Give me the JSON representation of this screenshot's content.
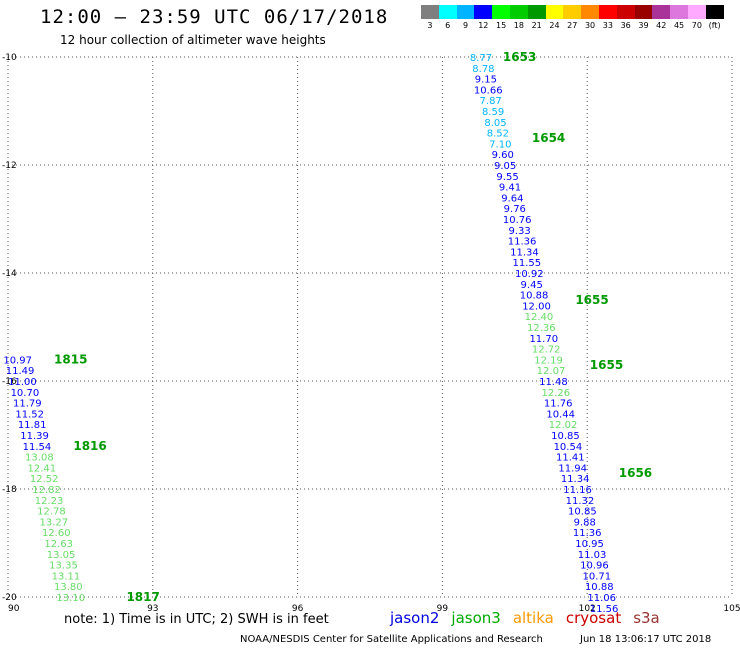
{
  "header": {
    "title": "12:00 – 23:59 UTC 06/17/2018",
    "subtitle": "12 hour collection of altimeter wave heights"
  },
  "legend": {
    "unit": "(ft)",
    "swatches": [
      {
        "label": "3",
        "color": "#7f7f7f"
      },
      {
        "label": "6",
        "color": "#00ffff"
      },
      {
        "label": "9",
        "color": "#00b4ff"
      },
      {
        "label": "12",
        "color": "#0000ff"
      },
      {
        "label": "15",
        "color": "#00ff00"
      },
      {
        "label": "18",
        "color": "#00cc00"
      },
      {
        "label": "21",
        "color": "#009900"
      },
      {
        "label": "24",
        "color": "#ffff00"
      },
      {
        "label": "27",
        "color": "#ffcc00"
      },
      {
        "label": "30",
        "color": "#ff8800"
      },
      {
        "label": "33",
        "color": "#ff0000"
      },
      {
        "label": "36",
        "color": "#cc0000"
      },
      {
        "label": "39",
        "color": "#990000"
      },
      {
        "label": "42",
        "color": "#aa3399"
      },
      {
        "label": "45",
        "color": "#dd77dd"
      },
      {
        "label": "70",
        "color": "#ffaaff"
      },
      {
        "label": "",
        "color": "#000000"
      }
    ]
  },
  "chart_data": {
    "type": "scatter",
    "xlim": [
      90,
      105
    ],
    "ylim": [
      -20,
      -10
    ],
    "x_ticks": [
      90,
      93,
      96,
      99,
      102,
      105
    ],
    "y_ticks": [
      -10,
      -12,
      -14,
      -16,
      -18,
      -20
    ],
    "grid": true,
    "tracks": [
      {
        "points": [
          {
            "lon": 99.8,
            "lat": -10.0,
            "v": "8.77",
            "c": "#00b4ff"
          },
          {
            "lon": 99.85,
            "lat": -10.2,
            "v": "8.78",
            "c": "#00b4ff"
          },
          {
            "lon": 99.9,
            "lat": -10.4,
            "v": "9.15",
            "c": "#0000ff"
          },
          {
            "lon": 99.95,
            "lat": -10.6,
            "v": "10.66",
            "c": "#0000ff"
          },
          {
            "lon": 100.0,
            "lat": -10.8,
            "v": "7.87",
            "c": "#00b4ff"
          },
          {
            "lon": 100.05,
            "lat": -11.0,
            "v": "8.59",
            "c": "#00b4ff"
          },
          {
            "lon": 100.1,
            "lat": -11.2,
            "v": "8.05",
            "c": "#00b4ff"
          },
          {
            "lon": 100.15,
            "lat": -11.4,
            "v": "8.52",
            "c": "#00b4ff"
          },
          {
            "lon": 100.2,
            "lat": -11.6,
            "v": "7.10",
            "c": "#00b4ff"
          },
          {
            "lon": 100.25,
            "lat": -11.8,
            "v": "9.60",
            "c": "#0000ff"
          },
          {
            "lon": 100.3,
            "lat": -12.0,
            "v": "9.05",
            "c": "#0000ff"
          },
          {
            "lon": 100.35,
            "lat": -12.2,
            "v": "9.55",
            "c": "#0000ff"
          },
          {
            "lon": 100.4,
            "lat": -12.4,
            "v": "9.41",
            "c": "#0000ff"
          },
          {
            "lon": 100.45,
            "lat": -12.6,
            "v": "9.64",
            "c": "#0000ff"
          },
          {
            "lon": 100.5,
            "lat": -12.8,
            "v": "9.76",
            "c": "#0000ff"
          },
          {
            "lon": 100.55,
            "lat": -13.0,
            "v": "10.76",
            "c": "#0000ff"
          },
          {
            "lon": 100.6,
            "lat": -13.2,
            "v": "9.33",
            "c": "#0000ff"
          },
          {
            "lon": 100.65,
            "lat": -13.4,
            "v": "11.36",
            "c": "#0000ff"
          },
          {
            "lon": 100.7,
            "lat": -13.6,
            "v": "11.34",
            "c": "#0000ff"
          },
          {
            "lon": 100.75,
            "lat": -13.8,
            "v": "11.55",
            "c": "#0000ff"
          },
          {
            "lon": 100.8,
            "lat": -14.0,
            "v": "10.92",
            "c": "#0000ff"
          },
          {
            "lon": 100.85,
            "lat": -14.2,
            "v": "9.45",
            "c": "#0000ff"
          },
          {
            "lon": 100.9,
            "lat": -14.4,
            "v": "10.88",
            "c": "#0000ff"
          },
          {
            "lon": 100.95,
            "lat": -14.6,
            "v": "12.00",
            "c": "#0000ff"
          },
          {
            "lon": 101.0,
            "lat": -14.8,
            "v": "12.40",
            "c": "#66dd66"
          },
          {
            "lon": 101.05,
            "lat": -15.0,
            "v": "12.36",
            "c": "#66dd66"
          },
          {
            "lon": 101.1,
            "lat": -15.2,
            "v": "11.70",
            "c": "#0000ff"
          },
          {
            "lon": 101.15,
            "lat": -15.4,
            "v": "12.72",
            "c": "#66dd66"
          },
          {
            "lon": 101.2,
            "lat": -15.6,
            "v": "12.19",
            "c": "#66dd66"
          },
          {
            "lon": 101.25,
            "lat": -15.8,
            "v": "12.07",
            "c": "#66dd66"
          },
          {
            "lon": 101.3,
            "lat": -16.0,
            "v": "11.48",
            "c": "#0000ff"
          },
          {
            "lon": 101.35,
            "lat": -16.2,
            "v": "12.26",
            "c": "#66dd66"
          },
          {
            "lon": 101.4,
            "lat": -16.4,
            "v": "11.76",
            "c": "#0000ff"
          },
          {
            "lon": 101.45,
            "lat": -16.6,
            "v": "10.44",
            "c": "#0000ff"
          },
          {
            "lon": 101.5,
            "lat": -16.8,
            "v": "12.02",
            "c": "#66dd66"
          },
          {
            "lon": 101.55,
            "lat": -17.0,
            "v": "10.85",
            "c": "#0000ff"
          },
          {
            "lon": 101.6,
            "lat": -17.2,
            "v": "10.54",
            "c": "#0000ff"
          },
          {
            "lon": 101.65,
            "lat": -17.4,
            "v": "11.41",
            "c": "#0000ff"
          },
          {
            "lon": 101.7,
            "lat": -17.6,
            "v": "11.94",
            "c": "#0000ff"
          },
          {
            "lon": 101.75,
            "lat": -17.8,
            "v": "11.34",
            "c": "#0000ff"
          },
          {
            "lon": 101.8,
            "lat": -18.0,
            "v": "11.16",
            "c": "#0000ff"
          },
          {
            "lon": 101.85,
            "lat": -18.2,
            "v": "11.32",
            "c": "#0000ff"
          },
          {
            "lon": 101.9,
            "lat": -18.4,
            "v": "10.85",
            "c": "#0000ff"
          },
          {
            "lon": 101.95,
            "lat": -18.6,
            "v": "9.88",
            "c": "#0000ff"
          },
          {
            "lon": 102.0,
            "lat": -18.8,
            "v": "11.36",
            "c": "#0000ff"
          },
          {
            "lon": 102.05,
            "lat": -19.0,
            "v": "10.95",
            "c": "#0000ff"
          },
          {
            "lon": 102.1,
            "lat": -19.2,
            "v": "11.03",
            "c": "#0000ff"
          },
          {
            "lon": 102.15,
            "lat": -19.4,
            "v": "10.96",
            "c": "#0000ff"
          },
          {
            "lon": 102.2,
            "lat": -19.6,
            "v": "10.71",
            "c": "#0000ff"
          },
          {
            "lon": 102.25,
            "lat": -19.8,
            "v": "10.88",
            "c": "#0000ff"
          },
          {
            "lon": 102.3,
            "lat": -20.0,
            "v": "11.06",
            "c": "#0000ff"
          },
          {
            "lon": 102.35,
            "lat": -20.2,
            "v": "11.56",
            "c": "#0000ff"
          }
        ],
        "times": [
          {
            "lon": 100.6,
            "lat": -10.0,
            "t": "1653"
          },
          {
            "lon": 101.2,
            "lat": -11.5,
            "t": "1654"
          },
          {
            "lon": 102.1,
            "lat": -14.5,
            "t": "1655"
          },
          {
            "lon": 102.4,
            "lat": -15.7,
            "t": "1655"
          },
          {
            "lon": 103.0,
            "lat": -17.7,
            "t": "1656"
          }
        ]
      },
      {
        "points": [
          {
            "lon": 90.2,
            "lat": -15.6,
            "v": "10.97",
            "c": "#0000ff"
          },
          {
            "lon": 90.25,
            "lat": -15.8,
            "v": "11.49",
            "c": "#0000ff"
          },
          {
            "lon": 90.3,
            "lat": -16.0,
            "v": "11.00",
            "c": "#0000ff"
          },
          {
            "lon": 90.35,
            "lat": -16.2,
            "v": "10.70",
            "c": "#0000ff"
          },
          {
            "lon": 90.4,
            "lat": -16.4,
            "v": "11.79",
            "c": "#0000ff"
          },
          {
            "lon": 90.45,
            "lat": -16.6,
            "v": "11.52",
            "c": "#0000ff"
          },
          {
            "lon": 90.5,
            "lat": -16.8,
            "v": "11.81",
            "c": "#0000ff"
          },
          {
            "lon": 90.55,
            "lat": -17.0,
            "v": "11.39",
            "c": "#0000ff"
          },
          {
            "lon": 90.6,
            "lat": -17.2,
            "v": "11.54",
            "c": "#0000ff"
          },
          {
            "lon": 90.65,
            "lat": -17.4,
            "v": "13.08",
            "c": "#66dd66"
          },
          {
            "lon": 90.7,
            "lat": -17.6,
            "v": "12.41",
            "c": "#66dd66"
          },
          {
            "lon": 90.75,
            "lat": -17.8,
            "v": "12.52",
            "c": "#66dd66"
          },
          {
            "lon": 90.8,
            "lat": -18.0,
            "v": "12.82",
            "c": "#66dd66"
          },
          {
            "lon": 90.85,
            "lat": -18.2,
            "v": "12.23",
            "c": "#66dd66"
          },
          {
            "lon": 90.9,
            "lat": -18.4,
            "v": "12.78",
            "c": "#66dd66"
          },
          {
            "lon": 90.95,
            "lat": -18.6,
            "v": "13.27",
            "c": "#66dd66"
          },
          {
            "lon": 91.0,
            "lat": -18.8,
            "v": "12.60",
            "c": "#66dd66"
          },
          {
            "lon": 91.05,
            "lat": -19.0,
            "v": "12.63",
            "c": "#66dd66"
          },
          {
            "lon": 91.1,
            "lat": -19.2,
            "v": "13.05",
            "c": "#66dd66"
          },
          {
            "lon": 91.15,
            "lat": -19.4,
            "v": "13.35",
            "c": "#66dd66"
          },
          {
            "lon": 91.2,
            "lat": -19.6,
            "v": "13.11",
            "c": "#66dd66"
          },
          {
            "lon": 91.25,
            "lat": -19.8,
            "v": "13.80",
            "c": "#66dd66"
          },
          {
            "lon": 91.3,
            "lat": -20.0,
            "v": "13.10",
            "c": "#66dd66"
          }
        ],
        "times": [
          {
            "lon": 91.3,
            "lat": -15.6,
            "t": "1815"
          },
          {
            "lon": 91.7,
            "lat": -17.2,
            "t": "1816"
          },
          {
            "lon": 92.8,
            "lat": -20.0,
            "t": "1817"
          }
        ]
      }
    ]
  },
  "footer": {
    "note": "note:  1) Time is in UTC;  2) SWH is in feet",
    "satellites": [
      {
        "name": "jason2",
        "color": "#0000dd"
      },
      {
        "name": "jason3",
        "color": "#00aa00"
      },
      {
        "name": "altika",
        "color": "#ff9900"
      },
      {
        "name": "cryosat",
        "color": "#cc0000"
      },
      {
        "name": "s3a",
        "color": "#993333"
      }
    ],
    "credit": "NOAA/NESDIS Center for Satellite Applications and Research",
    "timestamp": "Jun 18 13:06:17 UTC 2018"
  }
}
